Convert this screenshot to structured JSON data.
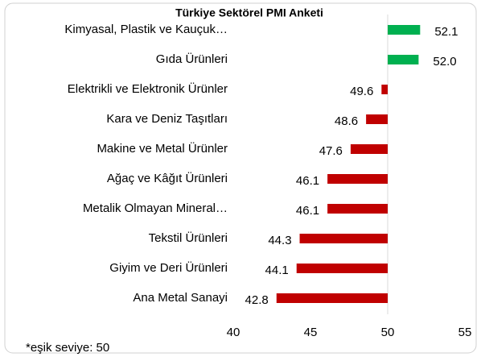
{
  "chart_data": {
    "type": "bar",
    "orientation": "horizontal",
    "title": "Türkiye Sektörel PMI Anketi",
    "annotation": "*eşik seviye: 50",
    "categories": [
      "Kimyasal, Plastik ve Kauçuk…",
      "Gıda Ürünleri",
      "Elektrikli ve Elektronik Ürünler",
      "Kara ve Deniz Taşıtları",
      "Makine ve Metal Ürünler",
      "Ağaç ve Kâğıt Ürünleri",
      "Metalik Olmayan Mineral…",
      "Tekstil Ürünleri",
      "Giyim ve Deri Ürünleri",
      "Ana Metal Sanayi"
    ],
    "values": [
      52.1,
      52.0,
      49.6,
      48.6,
      47.6,
      46.1,
      46.1,
      44.3,
      44.1,
      42.8
    ],
    "value_labels": [
      "52.1",
      "52.0",
      "49.6",
      "48.6",
      "47.6",
      "46.1",
      "46.1",
      "44.3",
      "44.1",
      "42.8"
    ],
    "colors": [
      "#00b050",
      "#00b050",
      "#c00000",
      "#c00000",
      "#c00000",
      "#c00000",
      "#c00000",
      "#c00000",
      "#c00000",
      "#c00000"
    ],
    "baseline": 50,
    "xlim": [
      40,
      55
    ],
    "xticks": [
      40,
      45,
      50,
      55
    ]
  }
}
